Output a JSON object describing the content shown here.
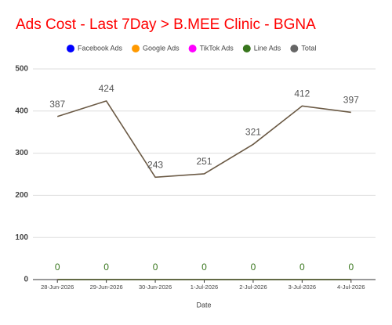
{
  "chart_data": {
    "type": "line",
    "title": "Ads Cost - Last 7Day > B.MEE Clinic - BGNA",
    "x_label": "Date",
    "categories": [
      "28-Jun-2026",
      "29-Jun-2026",
      "30-Jun-2026",
      "1-Jul-2026",
      "2-Jul-2026",
      "3-Jul-2026",
      "4-Jul-2026"
    ],
    "series": [
      {
        "name": "Facebook Ads",
        "color": "#0000ff",
        "values": [
          0,
          0,
          0,
          0,
          0,
          0,
          0
        ],
        "show_labels": false
      },
      {
        "name": "Google Ads",
        "color": "#ff9900",
        "values": [
          0,
          0,
          0,
          0,
          0,
          0,
          0
        ],
        "show_labels": false
      },
      {
        "name": "TikTok Ads",
        "color": "#ff00ff",
        "values": [
          0,
          0,
          0,
          0,
          0,
          0,
          0
        ],
        "show_labels": false
      },
      {
        "name": "Line Ads",
        "color": "#38761d",
        "values": [
          0,
          0,
          0,
          0,
          0,
          0,
          0
        ],
        "show_labels": true
      },
      {
        "name": "Total",
        "color": "#6b5a45",
        "legend_color": "#666666",
        "values": [
          387,
          424,
          243,
          251,
          321,
          412,
          397
        ],
        "show_labels": true
      }
    ],
    "ylim": [
      0,
      500
    ],
    "yticks": [
      0,
      100,
      200,
      300,
      400,
      500
    ],
    "grid": true,
    "legend": "top"
  }
}
